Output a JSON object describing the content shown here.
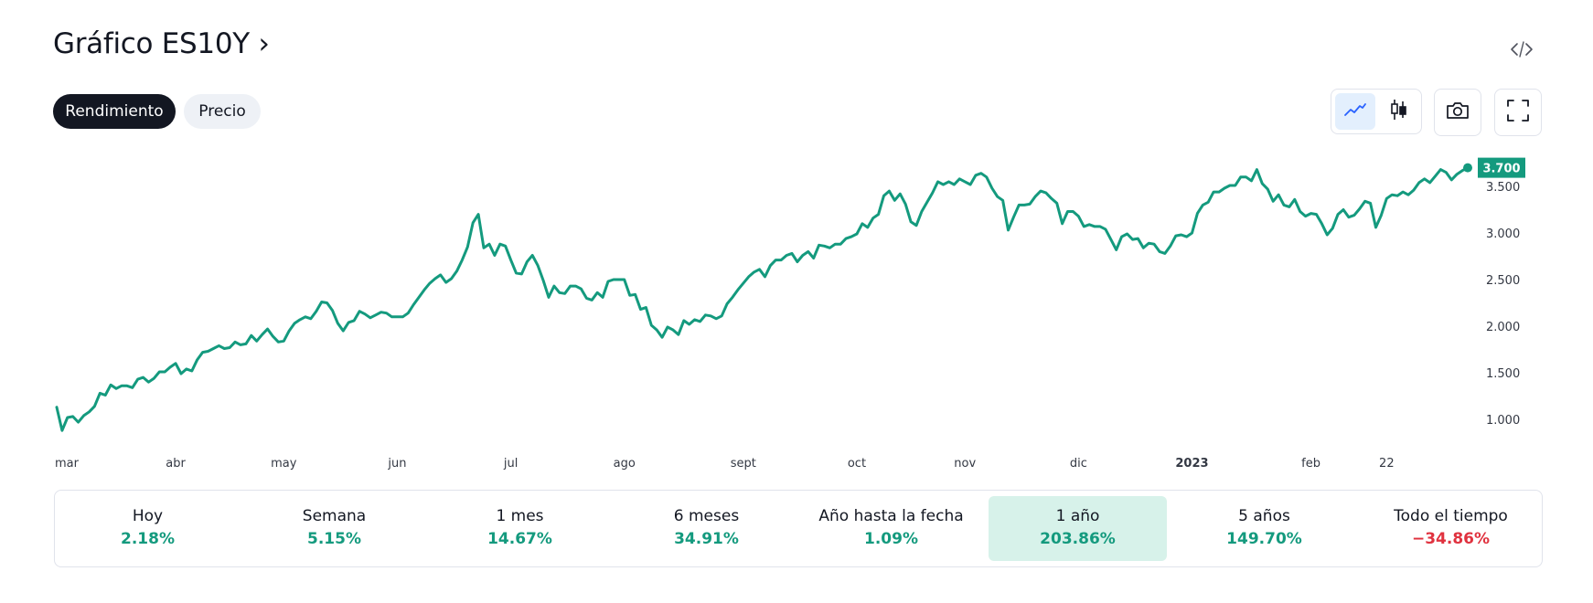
{
  "header": {
    "title": "Gráfico ES10Y ›",
    "embed_icon": "code-icon"
  },
  "tabs": [
    {
      "label": "Rendimiento",
      "active": true
    },
    {
      "label": "Precio",
      "active": false
    }
  ],
  "toolbar": {
    "chart_type_buttons": [
      "line-chart-icon",
      "candlestick-icon"
    ],
    "screenshot_icon": "camera-icon",
    "fullscreen_icon": "fullscreen-icon"
  },
  "colors": {
    "line": "#149a7e",
    "positive": "#149a7e",
    "negative": "#e0323f",
    "badge": "#149a7e"
  },
  "chart_data": {
    "type": "line",
    "title": "Gráfico ES10Y",
    "series_name": "ES10Y",
    "last_value_label": "3.700",
    "ylim": [
      0.7,
      3.78
    ],
    "y_ticks": [
      {
        "value": 1.0,
        "label": "1.000"
      },
      {
        "value": 1.5,
        "label": "1.500"
      },
      {
        "value": 2.0,
        "label": "2.000"
      },
      {
        "value": 2.5,
        "label": "2.500"
      },
      {
        "value": 3.0,
        "label": "3.000"
      },
      {
        "value": 3.5,
        "label": "3.500"
      }
    ],
    "x_ticks": [
      {
        "label": "mar",
        "index": 0,
        "bold": false
      },
      {
        "label": "abr",
        "index": 22,
        "bold": false
      },
      {
        "label": "may",
        "index": 42,
        "bold": false
      },
      {
        "label": "jun",
        "index": 63,
        "bold": false
      },
      {
        "label": "jul",
        "index": 84,
        "bold": false
      },
      {
        "label": "ago",
        "index": 105,
        "bold": false
      },
      {
        "label": "sept",
        "index": 127,
        "bold": false
      },
      {
        "label": "oct",
        "index": 148,
        "bold": false
      },
      {
        "label": "nov",
        "index": 168,
        "bold": false
      },
      {
        "label": "dic",
        "index": 189,
        "bold": false
      },
      {
        "label": "2023",
        "index": 210,
        "bold": true
      },
      {
        "label": "feb",
        "index": 232,
        "bold": false
      },
      {
        "label": "22",
        "index": 246,
        "bold": false
      }
    ],
    "values": [
      1.13,
      0.88,
      1.02,
      1.03,
      0.97,
      1.04,
      1.08,
      1.14,
      1.28,
      1.26,
      1.37,
      1.33,
      1.36,
      1.36,
      1.34,
      1.43,
      1.45,
      1.4,
      1.44,
      1.51,
      1.51,
      1.56,
      1.6,
      1.49,
      1.54,
      1.52,
      1.64,
      1.72,
      1.73,
      1.76,
      1.79,
      1.76,
      1.77,
      1.83,
      1.8,
      1.81,
      1.9,
      1.84,
      1.91,
      1.97,
      1.89,
      1.83,
      1.84,
      1.95,
      2.03,
      2.07,
      2.1,
      2.08,
      2.16,
      2.26,
      2.25,
      2.17,
      2.03,
      1.95,
      2.04,
      2.06,
      2.16,
      2.13,
      2.09,
      2.12,
      2.15,
      2.14,
      2.1,
      2.1,
      2.1,
      2.14,
      2.23,
      2.31,
      2.39,
      2.46,
      2.51,
      2.55,
      2.47,
      2.51,
      2.59,
      2.71,
      2.85,
      3.11,
      3.2,
      2.84,
      2.88,
      2.76,
      2.88,
      2.86,
      2.71,
      2.57,
      2.56,
      2.69,
      2.76,
      2.65,
      2.49,
      2.31,
      2.43,
      2.36,
      2.35,
      2.43,
      2.43,
      2.4,
      2.3,
      2.28,
      2.36,
      2.31,
      2.48,
      2.5,
      2.5,
      2.5,
      2.33,
      2.34,
      2.18,
      2.2,
      2.01,
      1.96,
      1.88,
      1.99,
      1.96,
      1.91,
      2.06,
      2.02,
      2.07,
      2.05,
      2.12,
      2.11,
      2.08,
      2.11,
      2.24,
      2.31,
      2.39,
      2.46,
      2.53,
      2.58,
      2.61,
      2.53,
      2.65,
      2.71,
      2.71,
      2.76,
      2.78,
      2.69,
      2.76,
      2.8,
      2.73,
      2.87,
      2.86,
      2.84,
      2.88,
      2.88,
      2.94,
      2.96,
      2.99,
      3.1,
      3.06,
      3.16,
      3.2,
      3.4,
      3.45,
      3.35,
      3.42,
      3.31,
      3.12,
      3.08,
      3.23,
      3.33,
      3.43,
      3.55,
      3.52,
      3.55,
      3.52,
      3.58,
      3.55,
      3.52,
      3.62,
      3.64,
      3.6,
      3.48,
      3.39,
      3.35,
      3.03,
      3.17,
      3.3,
      3.3,
      3.31,
      3.39,
      3.45,
      3.43,
      3.37,
      3.32,
      3.1,
      3.23,
      3.23,
      3.18,
      3.07,
      3.09,
      3.07,
      3.07,
      3.04,
      2.93,
      2.82,
      2.96,
      2.99,
      2.93,
      2.94,
      2.84,
      2.89,
      2.88,
      2.8,
      2.78,
      2.86,
      2.97,
      2.98,
      2.96,
      3.0,
      3.21,
      3.3,
      3.33,
      3.44,
      3.44,
      3.48,
      3.51,
      3.51,
      3.6,
      3.6,
      3.56,
      3.68,
      3.53,
      3.47,
      3.34,
      3.41,
      3.3,
      3.28,
      3.36,
      3.23,
      3.18,
      3.21,
      3.2,
      3.1,
      2.98,
      3.05,
      3.2,
      3.25,
      3.17,
      3.19,
      3.26,
      3.34,
      3.32,
      3.06,
      3.19,
      3.37,
      3.41,
      3.4,
      3.44,
      3.41,
      3.46,
      3.54,
      3.58,
      3.54,
      3.61,
      3.68,
      3.65,
      3.57,
      3.63,
      3.67,
      3.7
    ]
  },
  "timeframes": [
    {
      "label": "Hoy",
      "value": "2.18%",
      "negative": false,
      "selected": false
    },
    {
      "label": "Semana",
      "value": "5.15%",
      "negative": false,
      "selected": false
    },
    {
      "label": "1 mes",
      "value": "14.67%",
      "negative": false,
      "selected": false
    },
    {
      "label": "6 meses",
      "value": "34.91%",
      "negative": false,
      "selected": false
    },
    {
      "label": "Año hasta la fecha",
      "value": "1.09%",
      "negative": false,
      "selected": false
    },
    {
      "label": "1 año",
      "value": "203.86%",
      "negative": false,
      "selected": true
    },
    {
      "label": "5 años",
      "value": "149.70%",
      "negative": false,
      "selected": false
    },
    {
      "label": "Todo el tiempo",
      "value": "−34.86%",
      "negative": true,
      "selected": false
    }
  ]
}
